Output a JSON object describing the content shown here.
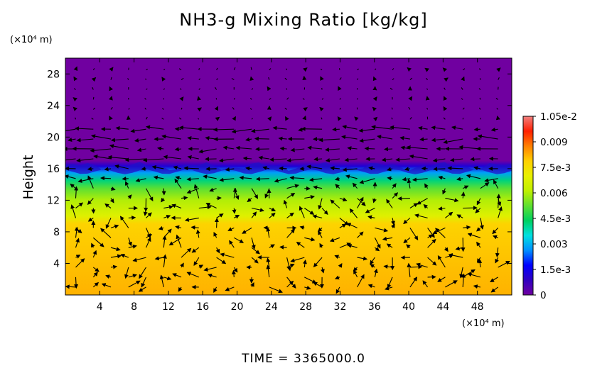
{
  "chart_data": {
    "type": "heatmap",
    "title": "NH3-g Mixing Ratio [kg/kg]",
    "xlabel": "",
    "ylabel": "Height",
    "x_unit": "(×10⁴ m)",
    "y_unit": "(×10⁴ m)",
    "xlim": [
      0,
      52
    ],
    "ylim": [
      0,
      30
    ],
    "x_ticks": [
      4,
      8,
      12,
      16,
      20,
      24,
      28,
      32,
      36,
      40,
      44,
      48
    ],
    "y_ticks": [
      4,
      8,
      12,
      16,
      20,
      24,
      28
    ],
    "field_profile": [
      {
        "height": 0,
        "value": 0.0082
      },
      {
        "height": 9,
        "value": 0.0078
      },
      {
        "height": 10,
        "value": 0.0068
      },
      {
        "height": 12,
        "value": 0.006
      },
      {
        "height": 13.5,
        "value": 0.0052
      },
      {
        "height": 14.5,
        "value": 0.0042
      },
      {
        "height": 15.5,
        "value": 0.0028
      },
      {
        "height": 16.3,
        "value": 0.0012
      },
      {
        "height": 17,
        "value": 0.0
      }
    ],
    "colorbar": {
      "range": [
        0,
        0.0105
      ],
      "tick_values": [
        0,
        0.0015,
        0.003,
        0.0045,
        0.006,
        0.0075,
        0.009,
        0.0105
      ],
      "tick_labels": [
        "0",
        "1.5e-3",
        "0.003",
        "4.5e-3",
        "0.006",
        "7.5e-3",
        "0.009",
        "1.05e-2"
      ],
      "colors": [
        "#7000a0",
        "#3000c0",
        "#0000ff",
        "#0090ff",
        "#00e0e0",
        "#00d060",
        "#60e030",
        "#c0f000",
        "#e8f000",
        "#ffd000",
        "#ff8000",
        "#ff2000",
        "#f08080"
      ]
    },
    "vector_field": "wind vectors (arrows)",
    "time_label": "TIME = 3365000.0"
  }
}
